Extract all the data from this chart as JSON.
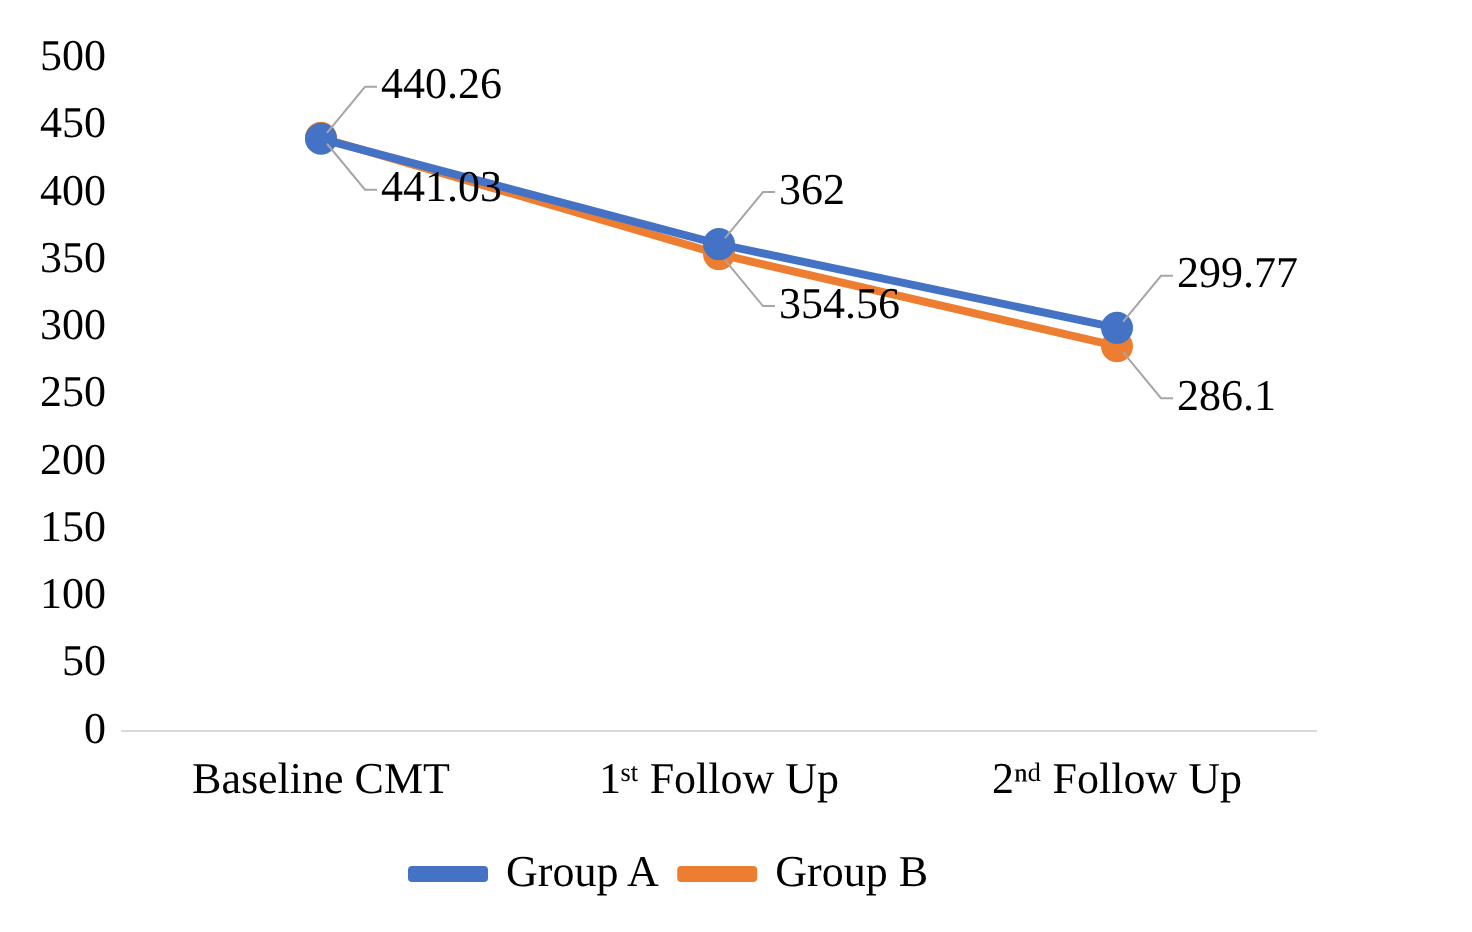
{
  "chart_data": {
    "type": "line",
    "categories": [
      "Baseline CMT",
      "1ˢᵗ Follow Up",
      "2ⁿᵈ Follow Up"
    ],
    "series": [
      {
        "name": "Group A",
        "color": "#4472c4",
        "values": [
          440.26,
          362,
          299.77
        ]
      },
      {
        "name": "Group B",
        "color": "#ed7d31",
        "values": [
          441.03,
          354.56,
          286.1
        ]
      }
    ],
    "ylim": [
      0,
      500
    ],
    "yticks": [
      0,
      50,
      100,
      150,
      200,
      250,
      300,
      350,
      400,
      450,
      500
    ],
    "grid": false,
    "legend": "bottom",
    "marker": "circle",
    "line_style": "solid",
    "data_labels": true
  }
}
